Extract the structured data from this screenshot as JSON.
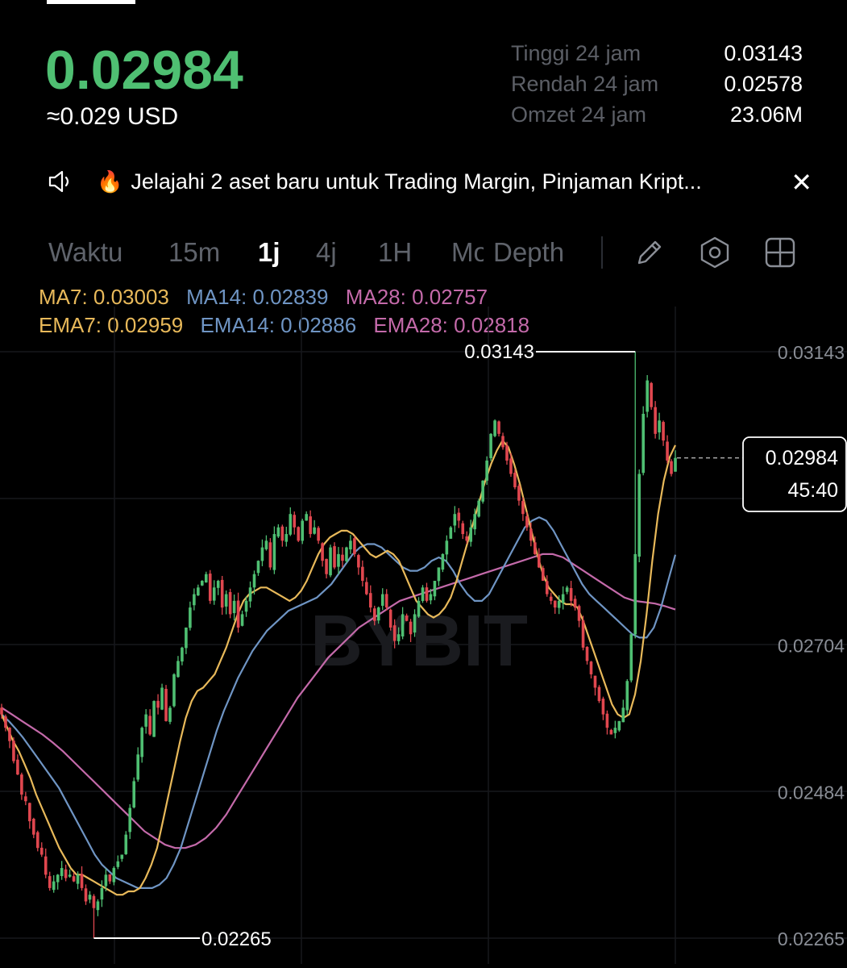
{
  "header": {
    "price": "0.02984",
    "price_usd": "≈0.029 USD",
    "price_color": "#4fbf72"
  },
  "stats": [
    {
      "label": "Tinggi 24 jam",
      "value": "0.03143"
    },
    {
      "label": "Rendah 24 jam",
      "value": "0.02578"
    },
    {
      "label": "Omzet 24 jam",
      "value": "23.06M"
    }
  ],
  "announcement": {
    "icon": "speaker-icon",
    "emoji": "🔥",
    "text": "Jelajahi 2 aset baru untuk Trading  Margin, Pinjaman Kript...",
    "close": "✕"
  },
  "timeframes": {
    "waktu": "Waktu",
    "m15": "15m",
    "j1": "1j",
    "j4": "4j",
    "h1": "1H",
    "mo": "Mo",
    "depth": "Depth",
    "active": "1j"
  },
  "indicators": {
    "ma7": "MA7: 0.03003",
    "ma14": "MA14: 0.02839",
    "ma28": "MA28: 0.02757",
    "ema7": "EMA7: 0.02959",
    "ema14": "EMA14: 0.02886",
    "ema28": "EMA28: 0.02818",
    "colors": {
      "c7": "#e8b95a",
      "c14": "#6f95c4",
      "c28": "#c46aaa"
    }
  },
  "chart_data": {
    "type": "candlestick",
    "y_ticks": [
      "0.03143",
      "0.02704",
      "0.02484",
      "0.02265"
    ],
    "ylim": [
      0.02265,
      0.03143
    ],
    "high_label": "0.03143",
    "low_label": "0.02265",
    "last_price": "0.02984",
    "countdown": "45:40",
    "watermark": "BYBIT",
    "up_color": "#4fbf72",
    "down_color": "#e0474f",
    "close": [
      0.026,
      0.0258,
      0.0256,
      0.0253,
      0.0251,
      0.0248,
      0.0247,
      0.0244,
      0.0242,
      0.024,
      0.0239,
      0.0236,
      0.0234,
      0.0235,
      0.0236,
      0.0237,
      0.02355,
      0.0236,
      0.0235,
      0.0236,
      0.0234,
      0.0232,
      0.0233,
      0.0231,
      0.0232,
      0.0234,
      0.0236,
      0.0235,
      0.0237,
      0.0238,
      0.0239,
      0.0242,
      0.0246,
      0.025,
      0.0254,
      0.0258,
      0.026,
      0.0257,
      0.0262,
      0.0261,
      0.0264,
      0.0259,
      0.0261,
      0.0266,
      0.0268,
      0.027,
      0.0273,
      0.0276,
      0.0278,
      0.0279,
      0.028,
      0.0281,
      0.0277,
      0.0279,
      0.028,
      0.0276,
      0.0278,
      0.0275,
      0.0277,
      0.0273,
      0.0275,
      0.0277,
      0.0279,
      0.0281,
      0.0283,
      0.0285,
      0.0286,
      0.0282,
      0.0287,
      0.0288,
      0.0286,
      0.0287,
      0.029,
      0.0288,
      0.0286,
      0.0289,
      0.029,
      0.0287,
      0.0288,
      0.0286,
      0.0283,
      0.0281,
      0.0285,
      0.0282,
      0.0284,
      0.0283,
      0.0285,
      0.0286,
      0.0284,
      0.0282,
      0.028,
      0.0278,
      0.0276,
      0.0274,
      0.0276,
      0.0278,
      0.0276,
      0.0273,
      0.0271,
      0.0272,
      0.0275,
      0.0274,
      0.0272,
      0.0275,
      0.0277,
      0.0279,
      0.0277,
      0.0278,
      0.028,
      0.0282,
      0.0284,
      0.0286,
      0.0288,
      0.029,
      0.0289,
      0.0287,
      0.0286,
      0.0288,
      0.029,
      0.0292,
      0.0295,
      0.0298,
      0.0302,
      0.0304,
      0.0302,
      0.03,
      0.0298,
      0.0296,
      0.0294,
      0.0292,
      0.029,
      0.0288,
      0.0286,
      0.0284,
      0.0282,
      0.028,
      0.0278,
      0.0277,
      0.0276,
      0.0277,
      0.0278,
      0.0279,
      0.0277,
      0.0276,
      0.0274,
      0.027,
      0.0268,
      0.0266,
      0.0264,
      0.0262,
      0.026,
      0.0258,
      0.0257,
      0.0258,
      0.0259,
      0.0261,
      0.0265,
      0.0272,
      0.0284,
      0.0296,
      0.0305,
      0.031,
      0.0306,
      0.0302,
      0.0304,
      0.0301,
      0.0298,
      0.0296,
      0.02984
    ],
    "ma7": [
      0.026,
      0.0258,
      0.0256,
      0.02545,
      0.02525,
      0.02505,
      0.0248,
      0.0246,
      0.0244,
      0.0242,
      0.024,
      0.02385,
      0.0237,
      0.0236,
      0.0236,
      0.02355,
      0.0235,
      0.02345,
      0.0234,
      0.02335,
      0.0233,
      0.0233,
      0.02335,
      0.02335,
      0.0234,
      0.02355,
      0.02375,
      0.024,
      0.0244,
      0.0248,
      0.0252,
      0.0256,
      0.02595,
      0.0262,
      0.02635,
      0.0264,
      0.0265,
      0.0266,
      0.0268,
      0.027,
      0.02725,
      0.0275,
      0.0277,
      0.0278,
      0.02785,
      0.0279,
      0.0279,
      0.02785,
      0.0278,
      0.02775,
      0.0277,
      0.02775,
      0.02785,
      0.028,
      0.0282,
      0.0284,
      0.02855,
      0.02865,
      0.0287,
      0.02875,
      0.02875,
      0.0287,
      0.0286,
      0.0285,
      0.0284,
      0.02835,
      0.0284,
      0.02845,
      0.0284,
      0.0283,
      0.0281,
      0.0279,
      0.0277,
      0.0276,
      0.0275,
      0.02745,
      0.0275,
      0.0276,
      0.02775,
      0.028,
      0.0283,
      0.0286,
      0.0289,
      0.0292,
      0.0295,
      0.02975,
      0.02995,
      0.0301,
      0.03,
      0.02975,
      0.02945,
      0.0291,
      0.02875,
      0.0284,
      0.0281,
      0.0279,
      0.0278,
      0.0277,
      0.02765,
      0.02765,
      0.0276,
      0.0274,
      0.02715,
      0.0269,
      0.02665,
      0.0264,
      0.02615,
      0.026,
      0.02595,
      0.026,
      0.0263,
      0.0268,
      0.0275,
      0.0283,
      0.029,
      0.0295,
      0.02985,
      0.03003
    ],
    "ma14": [
      0.026,
      0.0259,
      0.02578,
      0.02565,
      0.0255,
      0.02535,
      0.0252,
      0.02505,
      0.0249,
      0.0247,
      0.0245,
      0.0243,
      0.0241,
      0.0239,
      0.02375,
      0.02365,
      0.02355,
      0.0235,
      0.02345,
      0.0234,
      0.0234,
      0.0234,
      0.02345,
      0.02355,
      0.02375,
      0.024,
      0.02435,
      0.0247,
      0.02505,
      0.0254,
      0.02575,
      0.02605,
      0.0263,
      0.02655,
      0.02675,
      0.02695,
      0.0271,
      0.02725,
      0.02735,
      0.02745,
      0.02755,
      0.0276,
      0.02765,
      0.0277,
      0.02775,
      0.02785,
      0.02795,
      0.0281,
      0.02825,
      0.0284,
      0.0285,
      0.02855,
      0.02855,
      0.0285,
      0.0284,
      0.0283,
      0.0282,
      0.02815,
      0.02815,
      0.0282,
      0.0283,
      0.02835,
      0.0283,
      0.02815,
      0.02795,
      0.0278,
      0.0277,
      0.0277,
      0.0278,
      0.028,
      0.0282,
      0.0284,
      0.0286,
      0.0288,
      0.0289,
      0.02895,
      0.0289,
      0.02875,
      0.02855,
      0.02835,
      0.02815,
      0.02795,
      0.0278,
      0.0277,
      0.0276,
      0.0275,
      0.0274,
      0.0273,
      0.0272,
      0.02715,
      0.02715,
      0.0273,
      0.0276,
      0.028,
      0.02839
    ],
    "ma28": [
      0.0261,
      0.026,
      0.0259,
      0.0258,
      0.0257,
      0.02558,
      0.02545,
      0.0253,
      0.02515,
      0.025,
      0.02485,
      0.0247,
      0.02455,
      0.0244,
      0.02425,
      0.02415,
      0.02405,
      0.024,
      0.024,
      0.02405,
      0.02415,
      0.0243,
      0.0245,
      0.02475,
      0.025,
      0.02525,
      0.0255,
      0.02575,
      0.026,
      0.02625,
      0.02645,
      0.02665,
      0.02685,
      0.027,
      0.02715,
      0.0273,
      0.0274,
      0.0275,
      0.0276,
      0.0277,
      0.02775,
      0.0278,
      0.02785,
      0.0279,
      0.02795,
      0.028,
      0.02805,
      0.0281,
      0.02815,
      0.0282,
      0.02825,
      0.0283,
      0.02835,
      0.0284,
      0.0284,
      0.02835,
      0.02825,
      0.02815,
      0.02805,
      0.02795,
      0.02785,
      0.02775,
      0.0277,
      0.02768,
      0.02766,
      0.02762,
      0.02757
    ]
  }
}
